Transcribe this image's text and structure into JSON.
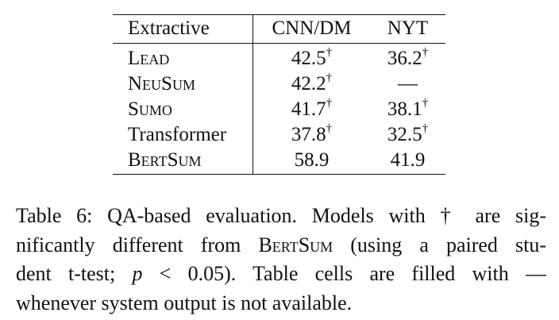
{
  "table": {
    "headers": [
      "Extractive",
      "CNN/DM",
      "NYT"
    ],
    "rows": [
      {
        "name": "Lead",
        "small_caps": true,
        "cnn": "42.5",
        "cnn_sig": "†",
        "nyt": "36.2",
        "nyt_sig": "†"
      },
      {
        "name": "NeuSum",
        "small_caps": true,
        "cnn": "42.2",
        "cnn_sig": "†",
        "nyt": "—",
        "nyt_sig": ""
      },
      {
        "name": "Sumo",
        "small_caps": true,
        "cnn": "41.7",
        "cnn_sig": "†",
        "nyt": "38.1",
        "nyt_sig": "†"
      },
      {
        "name": "Transformer",
        "small_caps": false,
        "cnn": "37.8",
        "cnn_sig": "†",
        "nyt": "32.5",
        "nyt_sig": "†"
      },
      {
        "name": "BertSum",
        "small_caps": true,
        "cnn": "58.9",
        "cnn_sig": "",
        "nyt": "41.9",
        "nyt_sig": ""
      }
    ]
  },
  "caption": {
    "line1": "Table 6: QA-based evaluation. Models with † are sig-",
    "line2_a": "nificantly different from ",
    "line2_sc": "BertSum",
    "line2_b": " (using a paired stu-",
    "line3_a": "dent t-test; ",
    "line3_p": "p",
    "line3_b": " < 0.05). Table cells are filled with —",
    "line4": "whenever system output is not available."
  }
}
